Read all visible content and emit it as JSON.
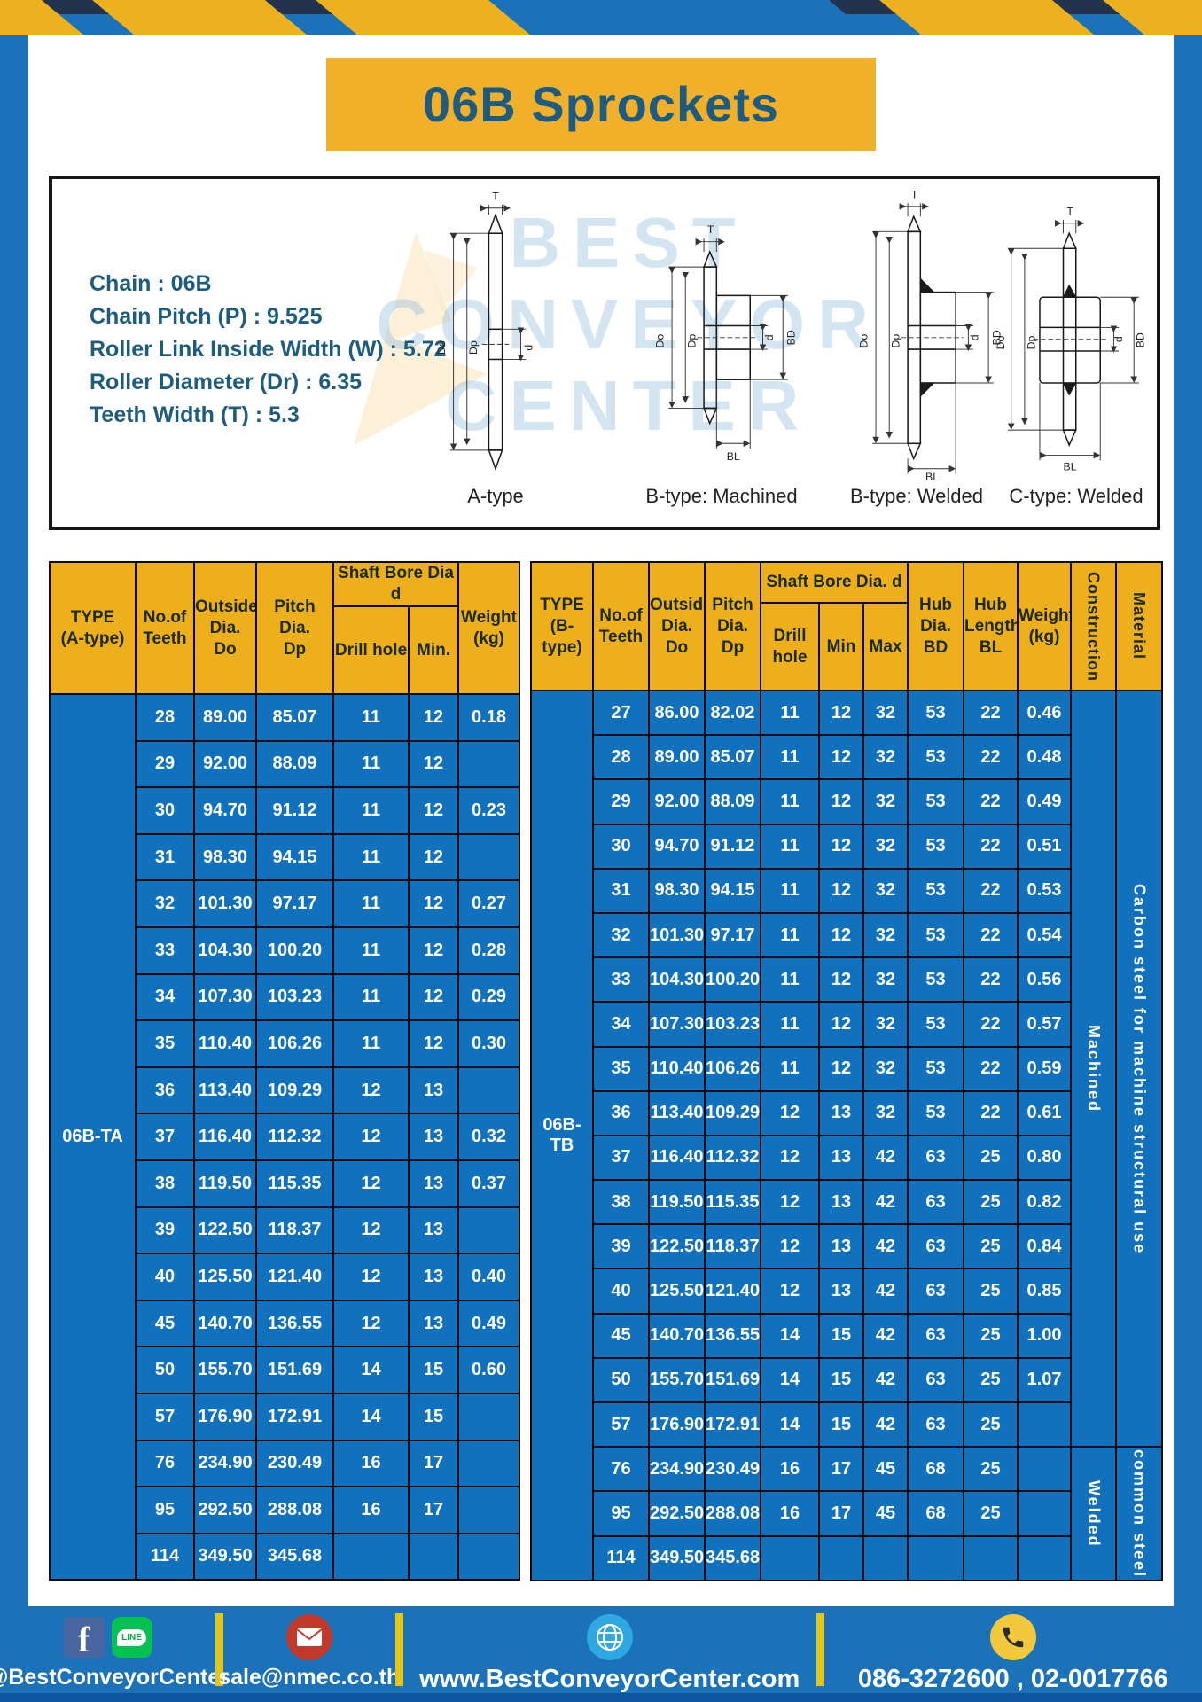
{
  "title": "06B Sprockets",
  "colors": {
    "brand_blue": "#1b72b8",
    "brand_yellow": "#f0b02a",
    "cell_blue": "#1271bd",
    "navy_stripe": "#22344d",
    "divider_yellow": "#e3c519"
  },
  "specs": {
    "lines": [
      "Chain  : 06B",
      "Chain Pitch (P)  :  9.525",
      "Roller Link Inside Width (W)  :  5.72",
      "Roller Diameter (Dr)  : 6.35",
      "Teeth Width (T)  :  5.3"
    ]
  },
  "diagram": {
    "watermark": [
      "BEST",
      "CONVEYOR",
      "CENTER"
    ],
    "dims": {
      "T": "T",
      "Do": "Do",
      "Dp": "Dp",
      "d": "d",
      "BD": "BD",
      "BL": "BL"
    },
    "types": [
      {
        "label": "A-type"
      },
      {
        "label": "B-type: Machined"
      },
      {
        "label": "B-type: Welded"
      },
      {
        "label": "C-type: Welded"
      }
    ]
  },
  "tables": {
    "left": {
      "headers": {
        "type": "TYPE\n(A-type)",
        "teeth": "No.of\nTeeth",
        "outside": "Outside\nDia.\nDo",
        "pitch": "Pitch Dia.\nDp",
        "shaft_group": "Shaft Bore Dia d",
        "drill": "Drill hole",
        "min": "Min.",
        "weight": "Weight\n(kg)"
      },
      "type_label": "06B-TA",
      "rows": [
        [
          "28",
          "89.00",
          "85.07",
          "11",
          "12",
          "0.18"
        ],
        [
          "29",
          "92.00",
          "88.09",
          "11",
          "12",
          ""
        ],
        [
          "30",
          "94.70",
          "91.12",
          "11",
          "12",
          "0.23"
        ],
        [
          "31",
          "98.30",
          "94.15",
          "11",
          "12",
          ""
        ],
        [
          "32",
          "101.30",
          "97.17",
          "11",
          "12",
          "0.27"
        ],
        [
          "33",
          "104.30",
          "100.20",
          "11",
          "12",
          "0.28"
        ],
        [
          "34",
          "107.30",
          "103.23",
          "11",
          "12",
          "0.29"
        ],
        [
          "35",
          "110.40",
          "106.26",
          "11",
          "12",
          "0.30"
        ],
        [
          "36",
          "113.40",
          "109.29",
          "12",
          "13",
          ""
        ],
        [
          "37",
          "116.40",
          "112.32",
          "12",
          "13",
          "0.32"
        ],
        [
          "38",
          "119.50",
          "115.35",
          "12",
          "13",
          "0.37"
        ],
        [
          "39",
          "122.50",
          "118.37",
          "12",
          "13",
          ""
        ],
        [
          "40",
          "125.50",
          "121.40",
          "12",
          "13",
          "0.40"
        ],
        [
          "45",
          "140.70",
          "136.55",
          "12",
          "13",
          "0.49"
        ],
        [
          "50",
          "155.70",
          "151.69",
          "14",
          "15",
          "0.60"
        ],
        [
          "57",
          "176.90",
          "172.91",
          "14",
          "15",
          ""
        ],
        [
          "76",
          "234.90",
          "230.49",
          "16",
          "17",
          ""
        ],
        [
          "95",
          "292.50",
          "288.08",
          "16",
          "17",
          ""
        ],
        [
          "114",
          "349.50",
          "345.68",
          "",
          "",
          ""
        ]
      ]
    },
    "right": {
      "headers": {
        "type": "TYPE\n(B-type)",
        "teeth": "No.of\nTeeth",
        "outside": "Outside\nDia.\nDo",
        "pitch": "Pitch\nDia.\nDp",
        "shaft_group": "Shaft Bore Dia. d",
        "drill": "Drill hole",
        "min": "Min",
        "max": "Max",
        "hub_dia": "Hub\nDia.\nBD",
        "hub_len": "Hub\nLength\nBL",
        "weight": "Weight\n(kg)",
        "construction": "Construction",
        "material": "Material"
      },
      "type_label": "06B-TB",
      "rows": [
        [
          "27",
          "86.00",
          "82.02",
          "11",
          "12",
          "32",
          "53",
          "22",
          "0.46"
        ],
        [
          "28",
          "89.00",
          "85.07",
          "11",
          "12",
          "32",
          "53",
          "22",
          "0.48"
        ],
        [
          "29",
          "92.00",
          "88.09",
          "11",
          "12",
          "32",
          "53",
          "22",
          "0.49"
        ],
        [
          "30",
          "94.70",
          "91.12",
          "11",
          "12",
          "32",
          "53",
          "22",
          "0.51"
        ],
        [
          "31",
          "98.30",
          "94.15",
          "11",
          "12",
          "32",
          "53",
          "22",
          "0.53"
        ],
        [
          "32",
          "101.30",
          "97.17",
          "11",
          "12",
          "32",
          "53",
          "22",
          "0.54"
        ],
        [
          "33",
          "104.30",
          "100.20",
          "11",
          "12",
          "32",
          "53",
          "22",
          "0.56"
        ],
        [
          "34",
          "107.30",
          "103.23",
          "11",
          "12",
          "32",
          "53",
          "22",
          "0.57"
        ],
        [
          "35",
          "110.40",
          "106.26",
          "11",
          "12",
          "32",
          "53",
          "22",
          "0.59"
        ],
        [
          "36",
          "113.40",
          "109.29",
          "12",
          "13",
          "32",
          "53",
          "22",
          "0.61"
        ],
        [
          "37",
          "116.40",
          "112.32",
          "12",
          "13",
          "42",
          "63",
          "25",
          "0.80"
        ],
        [
          "38",
          "119.50",
          "115.35",
          "12",
          "13",
          "42",
          "63",
          "25",
          "0.82"
        ],
        [
          "39",
          "122.50",
          "118.37",
          "12",
          "13",
          "42",
          "63",
          "25",
          "0.84"
        ],
        [
          "40",
          "125.50",
          "121.40",
          "12",
          "13",
          "42",
          "63",
          "25",
          "0.85"
        ],
        [
          "45",
          "140.70",
          "136.55",
          "14",
          "15",
          "42",
          "63",
          "25",
          "1.00"
        ],
        [
          "50",
          "155.70",
          "151.69",
          "14",
          "15",
          "42",
          "63",
          "25",
          "1.07"
        ],
        [
          "57",
          "176.90",
          "172.91",
          "14",
          "15",
          "42",
          "63",
          "25",
          ""
        ],
        [
          "76",
          "234.90",
          "230.49",
          "16",
          "17",
          "45",
          "68",
          "25",
          ""
        ],
        [
          "95",
          "292.50",
          "288.08",
          "16",
          "17",
          "45",
          "68",
          "25",
          ""
        ],
        [
          "114",
          "349.50",
          "345.68",
          "",
          "",
          "",
          "",
          "",
          ""
        ]
      ],
      "extra_cols": [
        {
          "name": "construction-cell",
          "segments": [
            {
              "start": 0,
              "span": 17,
              "label": "Machined"
            },
            {
              "start": 17,
              "span": 3,
              "label": "Welded"
            }
          ]
        },
        {
          "name": "material-cell",
          "segments": [
            {
              "start": 0,
              "span": 17,
              "label": "Carbon steel for machine structural use"
            },
            {
              "start": 17,
              "span": 3,
              "label": "common steel"
            }
          ]
        }
      ]
    }
  },
  "footer": {
    "social_handle": "@BestConveyorCenter",
    "line_label": "LINE",
    "email": "sale@nmec.co.th",
    "website": "www.BestConveyorCenter.com",
    "phone": "086-3272600 , 02-0017766"
  }
}
